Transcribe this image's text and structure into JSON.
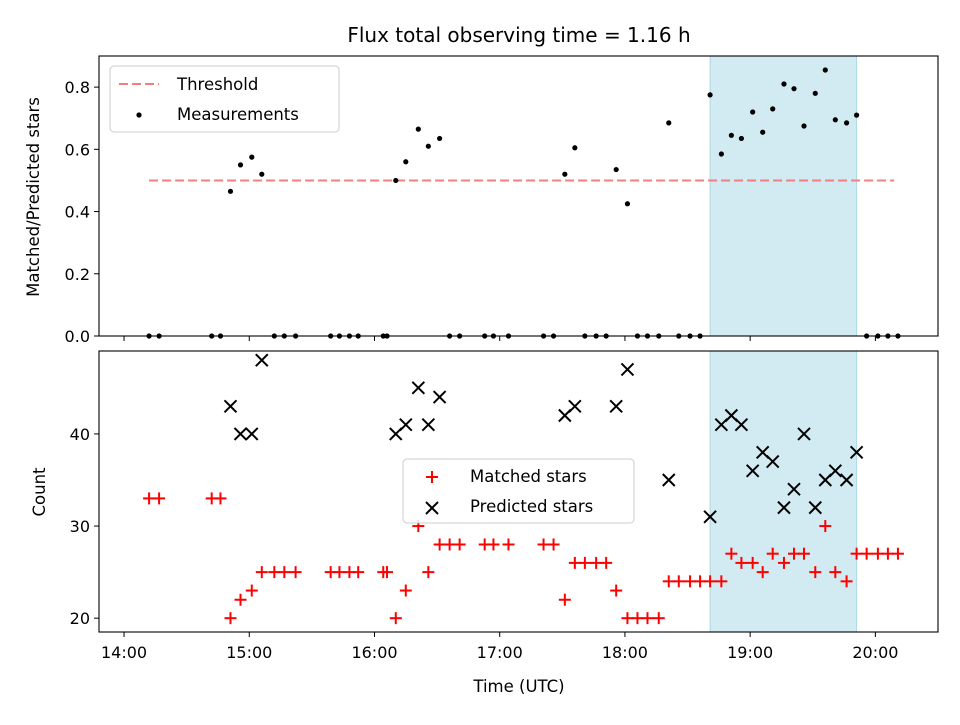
{
  "chart_data": [
    {
      "type": "scatter",
      "title": "Flux total observing time = 1.16 h",
      "xlabel": "",
      "ylabel": "Matched/Predicted stars",
      "xlim": [
        13.8,
        20.5
      ],
      "ylim": [
        0,
        0.9
      ],
      "yticks": [
        0.0,
        0.2,
        0.4,
        0.6,
        0.8
      ],
      "ytick_labels": [
        "0.0",
        "0.2",
        "0.4",
        "0.6",
        "0.8"
      ],
      "legend_position": "upper-left",
      "highlight_span": {
        "x_start": 18.68,
        "x_end": 19.85,
        "color": "#add8e6"
      },
      "threshold": {
        "name": "Threshold",
        "y": 0.5,
        "x_start": 14.2,
        "x_end": 20.15,
        "color": "#f08080",
        "style": "dashed"
      },
      "series": [
        {
          "name": "Measurements",
          "color": "#000000",
          "marker": "dot",
          "points": [
            [
              14.2,
              0
            ],
            [
              14.28,
              0
            ],
            [
              14.7,
              0
            ],
            [
              14.77,
              0
            ],
            [
              14.85,
              0.465
            ],
            [
              14.93,
              0.55
            ],
            [
              15.02,
              0.575
            ],
            [
              15.1,
              0.52
            ],
            [
              15.2,
              0
            ],
            [
              15.28,
              0
            ],
            [
              15.37,
              0
            ],
            [
              15.65,
              0
            ],
            [
              15.72,
              0
            ],
            [
              15.8,
              0
            ],
            [
              15.87,
              0
            ],
            [
              16.07,
              0
            ],
            [
              16.1,
              0
            ],
            [
              16.17,
              0.5
            ],
            [
              16.25,
              0.56
            ],
            [
              16.35,
              0.665
            ],
            [
              16.43,
              0.61
            ],
            [
              16.52,
              0.635
            ],
            [
              16.6,
              0
            ],
            [
              16.68,
              0
            ],
            [
              16.88,
              0
            ],
            [
              16.95,
              0
            ],
            [
              17.07,
              0
            ],
            [
              17.35,
              0
            ],
            [
              17.43,
              0
            ],
            [
              17.52,
              0.52
            ],
            [
              17.6,
              0.605
            ],
            [
              17.68,
              0
            ],
            [
              17.77,
              0
            ],
            [
              17.85,
              0
            ],
            [
              17.93,
              0.535
            ],
            [
              18.02,
              0.425
            ],
            [
              18.1,
              0
            ],
            [
              18.18,
              0
            ],
            [
              18.27,
              0
            ],
            [
              18.35,
              0.685
            ],
            [
              18.43,
              0
            ],
            [
              18.52,
              0
            ],
            [
              18.6,
              0
            ],
            [
              18.68,
              0.775
            ],
            [
              18.77,
              0.585
            ],
            [
              18.85,
              0.645
            ],
            [
              18.93,
              0.635
            ],
            [
              19.02,
              0.72
            ],
            [
              19.1,
              0.655
            ],
            [
              19.18,
              0.73
            ],
            [
              19.27,
              0.81
            ],
            [
              19.35,
              0.795
            ],
            [
              19.43,
              0.675
            ],
            [
              19.52,
              0.78
            ],
            [
              19.6,
              0.855
            ],
            [
              19.68,
              0.695
            ],
            [
              19.77,
              0.685
            ],
            [
              19.85,
              0.71
            ],
            [
              19.93,
              0
            ],
            [
              20.02,
              0
            ],
            [
              20.1,
              0
            ],
            [
              20.18,
              0
            ]
          ]
        }
      ]
    },
    {
      "type": "scatter",
      "title": "",
      "xlabel": "Time (UTC)",
      "ylabel": "Count",
      "xlim": [
        13.8,
        20.5
      ],
      "ylim": [
        18.5,
        49
      ],
      "yticks": [
        20,
        30,
        40
      ],
      "ytick_labels": [
        "20",
        "30",
        "40"
      ],
      "xticks": [
        14,
        15,
        16,
        17,
        18,
        19,
        20
      ],
      "xtick_labels": [
        "14:00",
        "15:00",
        "16:00",
        "17:00",
        "18:00",
        "19:00",
        "20:00"
      ],
      "legend_position": "center",
      "highlight_span": {
        "x_start": 18.68,
        "x_end": 19.85,
        "color": "#add8e6"
      },
      "series": [
        {
          "name": "Matched stars",
          "color": "#ff0000",
          "marker": "plus",
          "points": [
            [
              14.2,
              33
            ],
            [
              14.28,
              33
            ],
            [
              14.7,
              33
            ],
            [
              14.77,
              33
            ],
            [
              14.85,
              20
            ],
            [
              14.93,
              22
            ],
            [
              15.02,
              23
            ],
            [
              15.1,
              25
            ],
            [
              15.2,
              25
            ],
            [
              15.28,
              25
            ],
            [
              15.37,
              25
            ],
            [
              15.65,
              25
            ],
            [
              15.72,
              25
            ],
            [
              15.8,
              25
            ],
            [
              15.87,
              25
            ],
            [
              16.07,
              25
            ],
            [
              16.1,
              25
            ],
            [
              16.17,
              20
            ],
            [
              16.25,
              23
            ],
            [
              16.35,
              30
            ],
            [
              16.43,
              25
            ],
            [
              16.52,
              28
            ],
            [
              16.6,
              28
            ],
            [
              16.68,
              28
            ],
            [
              16.88,
              28
            ],
            [
              16.95,
              28
            ],
            [
              17.07,
              28
            ],
            [
              17.35,
              28
            ],
            [
              17.43,
              28
            ],
            [
              17.52,
              22
            ],
            [
              17.6,
              26
            ],
            [
              17.68,
              26
            ],
            [
              17.77,
              26
            ],
            [
              17.85,
              26
            ],
            [
              17.93,
              23
            ],
            [
              18.02,
              20
            ],
            [
              18.1,
              20
            ],
            [
              18.18,
              20
            ],
            [
              18.27,
              20
            ],
            [
              18.35,
              24
            ],
            [
              18.43,
              24
            ],
            [
              18.52,
              24
            ],
            [
              18.6,
              24
            ],
            [
              18.68,
              24
            ],
            [
              18.77,
              24
            ],
            [
              18.85,
              27
            ],
            [
              18.93,
              26
            ],
            [
              19.02,
              26
            ],
            [
              19.1,
              25
            ],
            [
              19.18,
              27
            ],
            [
              19.27,
              26
            ],
            [
              19.35,
              27
            ],
            [
              19.43,
              27
            ],
            [
              19.52,
              25
            ],
            [
              19.6,
              30
            ],
            [
              19.68,
              25
            ],
            [
              19.77,
              24
            ],
            [
              19.85,
              27
            ],
            [
              19.93,
              27
            ],
            [
              20.02,
              27
            ],
            [
              20.1,
              27
            ],
            [
              20.18,
              27
            ]
          ]
        },
        {
          "name": "Predicted stars",
          "color": "#000000",
          "marker": "x",
          "points": [
            [
              14.85,
              43
            ],
            [
              14.93,
              40
            ],
            [
              15.02,
              40
            ],
            [
              15.1,
              48
            ],
            [
              16.17,
              40
            ],
            [
              16.25,
              41
            ],
            [
              16.35,
              45
            ],
            [
              16.43,
              41
            ],
            [
              16.52,
              44
            ],
            [
              17.52,
              42
            ],
            [
              17.6,
              43
            ],
            [
              17.93,
              43
            ],
            [
              18.02,
              47
            ],
            [
              18.35,
              35
            ],
            [
              18.68,
              31
            ],
            [
              18.77,
              41
            ],
            [
              18.85,
              42
            ],
            [
              18.93,
              41
            ],
            [
              19.02,
              36
            ],
            [
              19.1,
              38
            ],
            [
              19.18,
              37
            ],
            [
              19.27,
              32
            ],
            [
              19.35,
              34
            ],
            [
              19.43,
              40
            ],
            [
              19.52,
              32
            ],
            [
              19.6,
              35
            ],
            [
              19.68,
              36
            ],
            [
              19.77,
              35
            ],
            [
              19.85,
              38
            ]
          ]
        }
      ]
    }
  ]
}
